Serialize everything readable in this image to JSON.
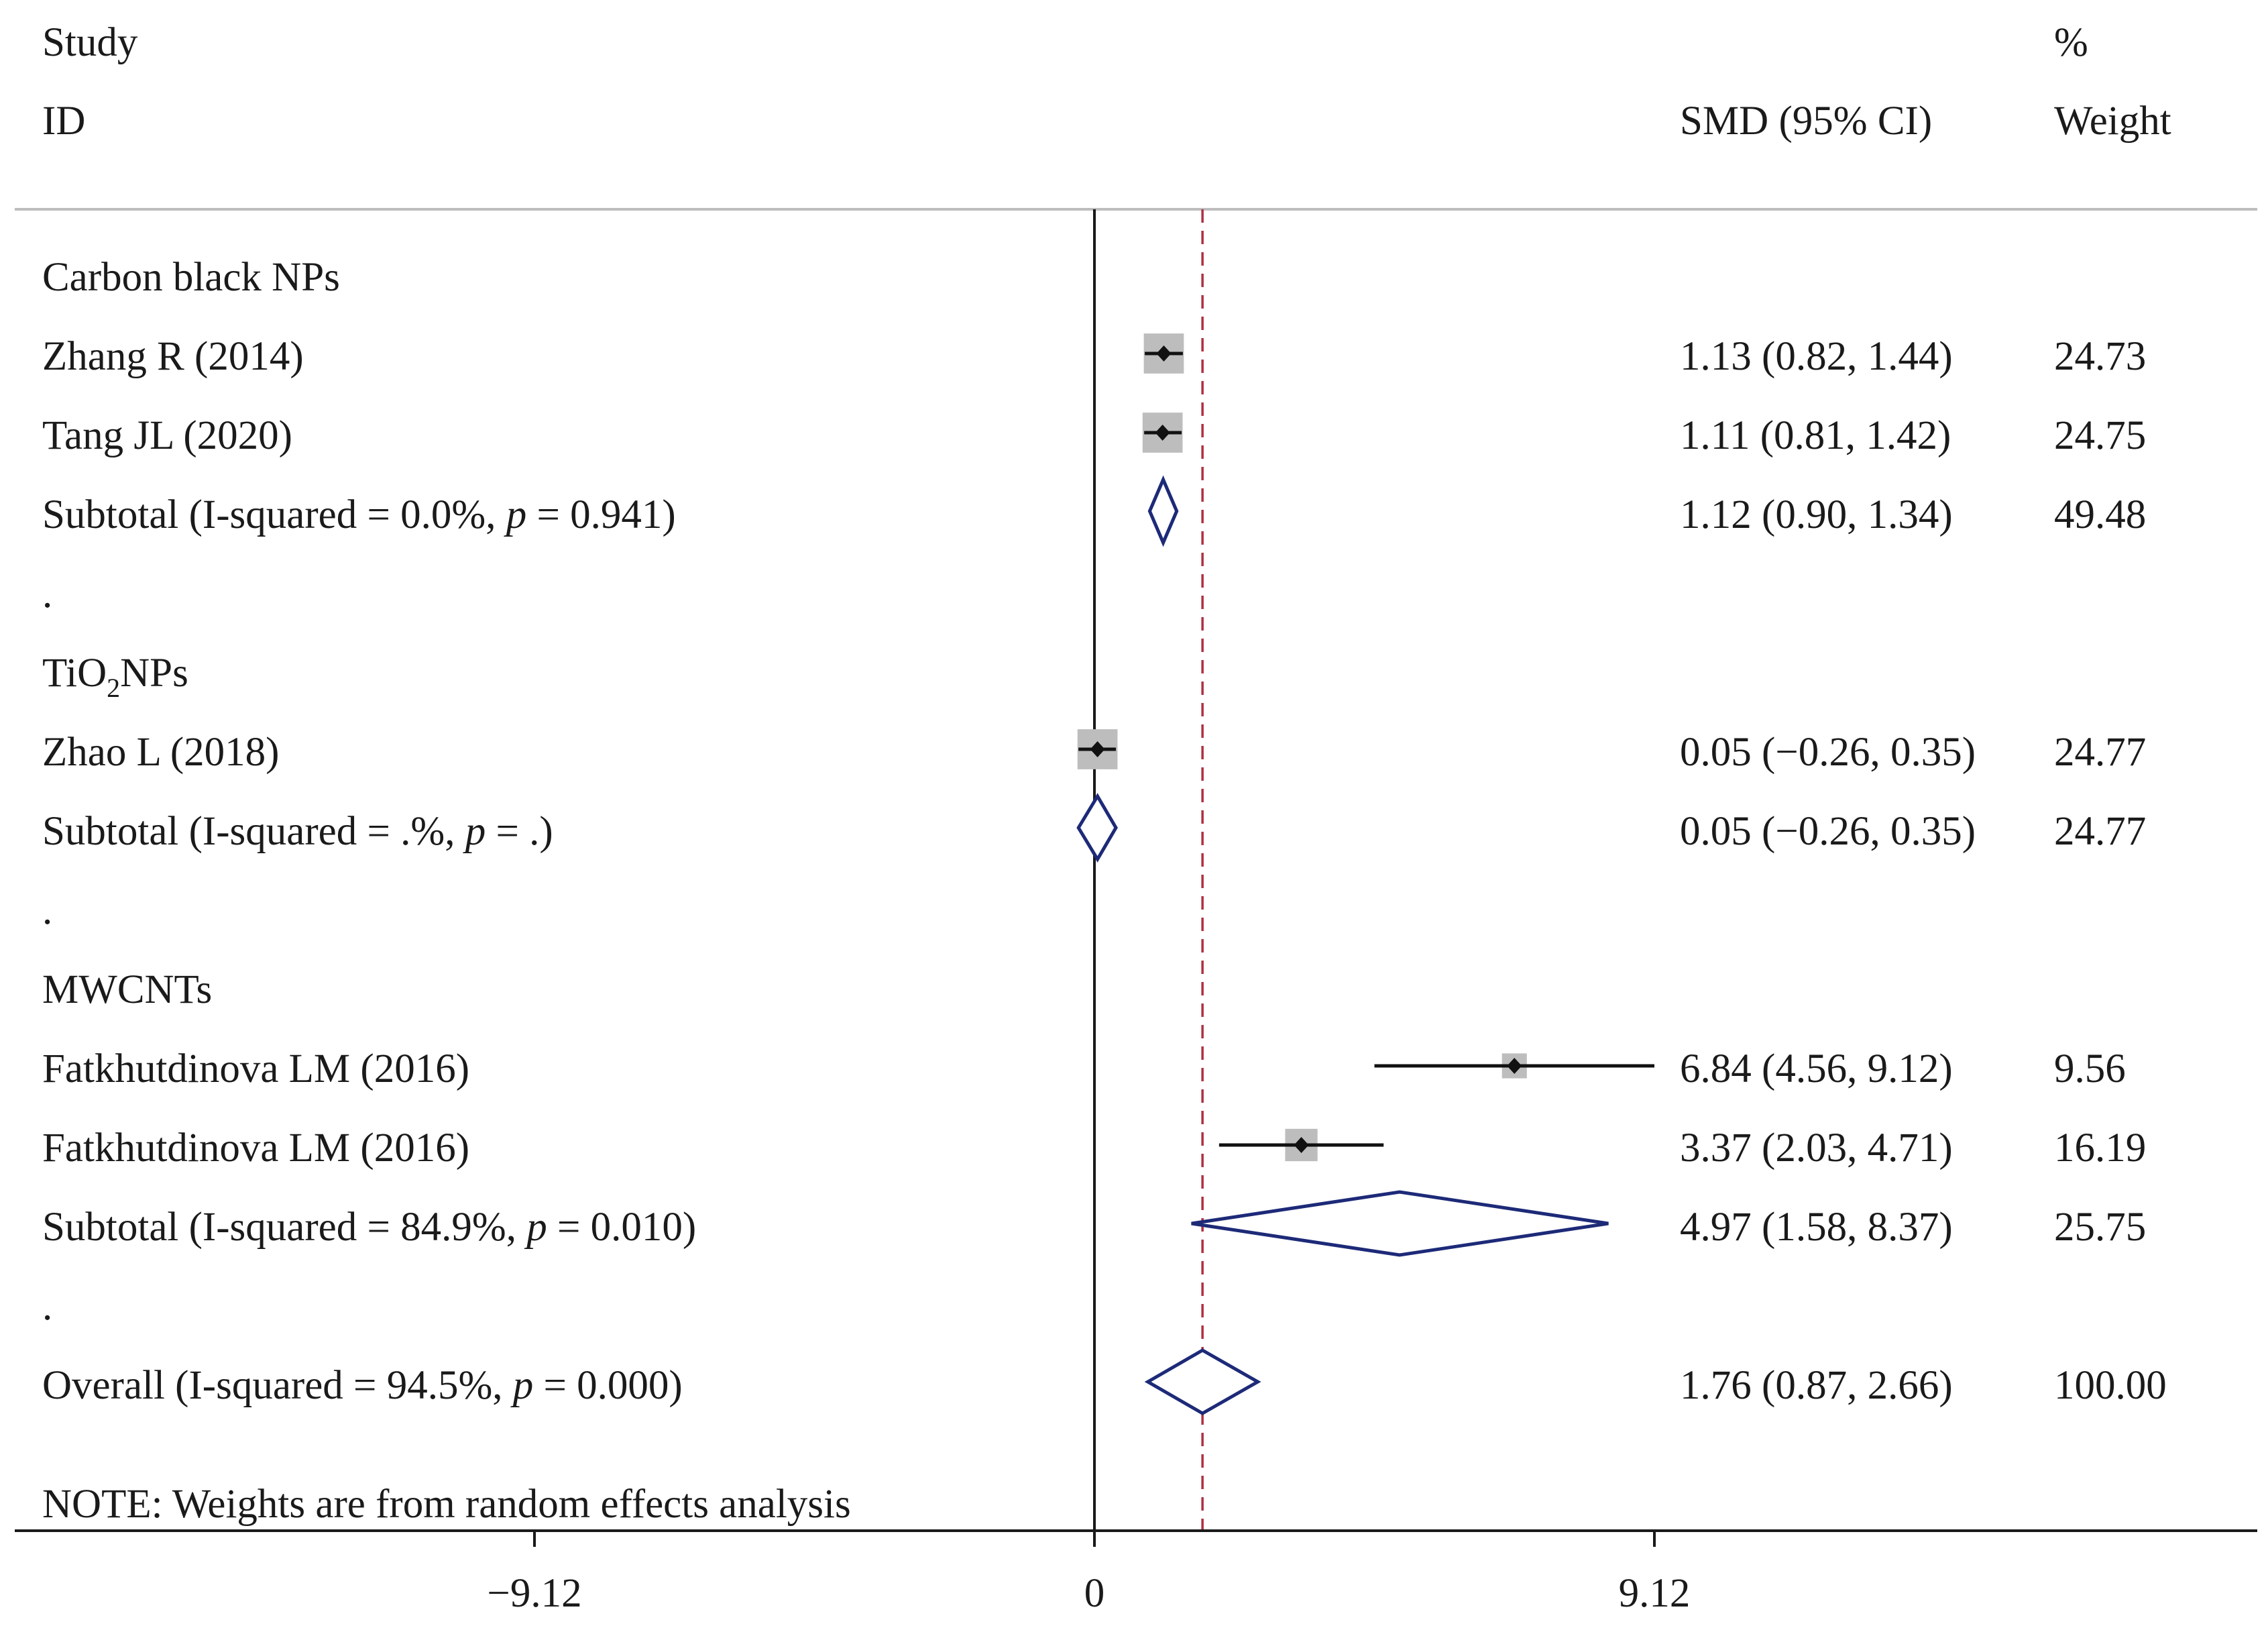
{
  "chart_data": {
    "type": "forest",
    "headers": {
      "study_line1": "Study",
      "study_line2": "ID",
      "effect": "SMD (95% CI)",
      "weight_line1": "%",
      "weight_line2": "Weight"
    },
    "rows": [
      {
        "kind": "group",
        "label": "Carbon black NPs"
      },
      {
        "kind": "study",
        "label": "Zhang R (2014)",
        "est": 1.13,
        "lo": 0.82,
        "hi": 1.44,
        "ci_text": "1.13 (0.82, 1.44)",
        "weight": 24.73,
        "weight_text": "24.73"
      },
      {
        "kind": "study",
        "label": "Tang JL (2020)",
        "est": 1.11,
        "lo": 0.81,
        "hi": 1.42,
        "ci_text": "1.11 (0.81, 1.42)",
        "weight": 24.75,
        "weight_text": "24.75"
      },
      {
        "kind": "subtotal",
        "label": "Subtotal  (I-squared = 0.0%, ",
        "p_symbol": "p",
        "p_text": " = 0.941)",
        "est": 1.12,
        "lo": 0.9,
        "hi": 1.34,
        "ci_text": "1.12 (0.90, 1.34)",
        "weight": 49.48,
        "weight_text": "49.48"
      },
      {
        "kind": "spacer",
        "label": "."
      },
      {
        "kind": "group",
        "label": "TiO",
        "subscript": "2",
        "label_rest": "NPs"
      },
      {
        "kind": "study",
        "label": "Zhao L (2018)",
        "est": 0.05,
        "lo": -0.26,
        "hi": 0.35,
        "ci_text": "0.05 (−0.26, 0.35)",
        "weight": 24.77,
        "weight_text": "24.77"
      },
      {
        "kind": "subtotal",
        "label": "Subtotal  (I-squared = .%, ",
        "p_symbol": "p",
        "p_text": " = .)",
        "est": 0.05,
        "lo": -0.26,
        "hi": 0.35,
        "ci_text": "0.05 (−0.26, 0.35)",
        "weight": 24.77,
        "weight_text": "24.77"
      },
      {
        "kind": "spacer",
        "label": "."
      },
      {
        "kind": "group",
        "label": "MWCNTs"
      },
      {
        "kind": "study",
        "label": "Fatkhutdinova LM (2016)",
        "est": 6.84,
        "lo": 4.56,
        "hi": 9.12,
        "ci_text": "6.84 (4.56, 9.12)",
        "weight": 9.56,
        "weight_text": "9.56"
      },
      {
        "kind": "study",
        "label": "Fatkhutdinova LM (2016)",
        "est": 3.37,
        "lo": 2.03,
        "hi": 4.71,
        "ci_text": "3.37 (2.03, 4.71)",
        "weight": 16.19,
        "weight_text": "16.19"
      },
      {
        "kind": "subtotal",
        "label": "Subtotal  (I-squared = 84.9%, ",
        "p_symbol": "p",
        "p_text": " = 0.010)",
        "est": 4.97,
        "lo": 1.58,
        "hi": 8.37,
        "ci_text": "4.97 (1.58, 8.37)",
        "weight": 25.75,
        "weight_text": "25.75"
      },
      {
        "kind": "spacer",
        "label": "."
      },
      {
        "kind": "overall",
        "label": "Overall  (I-squared = 94.5%, ",
        "p_symbol": "p",
        "p_text": " = 0.000)",
        "est": 1.76,
        "lo": 0.87,
        "hi": 2.66,
        "ci_text": "1.76 (0.87, 2.66)",
        "weight": 100.0,
        "weight_text": "100.00"
      }
    ],
    "note": "NOTE: Weights are from random effects analysis",
    "x_axis": {
      "range": [
        -17.6,
        18.1
      ],
      "ticks": [
        -9.12,
        0,
        9.12
      ],
      "tick_labels": [
        "−9.12",
        "0",
        "9.12"
      ],
      "null_line": 0,
      "overall_line": 1.76
    },
    "colors": {
      "text": "#1a1a1a",
      "axis": "#1a1a1a",
      "diamond": "#1d2a78",
      "overall_line": "#b03040",
      "box": "#bdbdbd",
      "point": "#111111"
    }
  }
}
